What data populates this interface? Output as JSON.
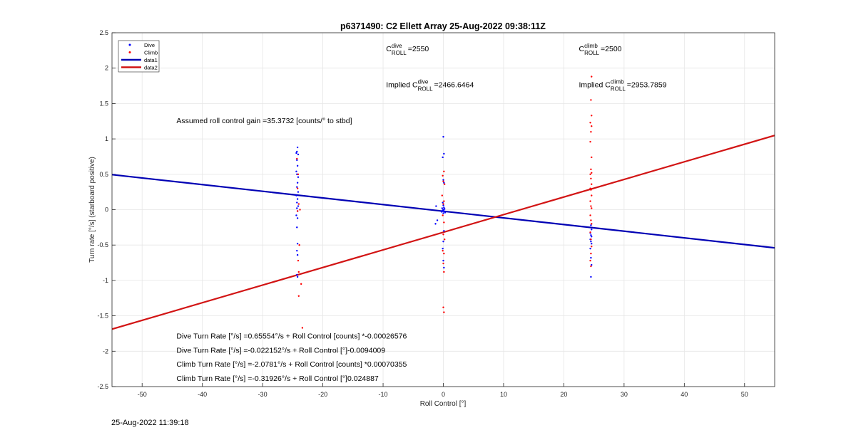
{
  "chart_data": {
    "type": "scatter",
    "title": "p6371490: C2 Ellett Array 25-Aug-2022 09:38:11Z",
    "xlabel": "Roll Control [°]",
    "ylabel": "Turn rate [°/s] (starboard positive)",
    "xlim": [
      -55,
      55
    ],
    "ylim": [
      -2.5,
      2.5
    ],
    "xticks": [
      -50,
      -40,
      -30,
      -20,
      -10,
      0,
      10,
      20,
      30,
      40,
      50
    ],
    "yticks": [
      -2.5,
      -2,
      -1.5,
      -1,
      -0.5,
      0,
      0.5,
      1,
      1.5,
      2,
      2.5
    ],
    "grid": true,
    "legend_position": "top-left",
    "series": [
      {
        "name": "Dive",
        "kind": "points",
        "color": "#0000ff",
        "points": [
          [
            -24.2,
            0.88
          ],
          [
            -24.3,
            0.82
          ],
          [
            -24.4,
            0.8
          ],
          [
            -24.1,
            0.78
          ],
          [
            -24.3,
            0.7
          ],
          [
            -24.2,
            0.62
          ],
          [
            -24.4,
            0.54
          ],
          [
            -24.3,
            0.5
          ],
          [
            -24.1,
            0.46
          ],
          [
            -24.2,
            0.38
          ],
          [
            -24.3,
            0.32
          ],
          [
            -24.1,
            0.25
          ],
          [
            -24.4,
            0.2
          ],
          [
            -24.2,
            0.15
          ],
          [
            -24.3,
            0.1
          ],
          [
            -24.1,
            0.05
          ],
          [
            -24.3,
            0.02
          ],
          [
            -24.2,
            -0.02
          ],
          [
            -24.4,
            -0.08
          ],
          [
            -24.2,
            -0.12
          ],
          [
            -24.3,
            -0.25
          ],
          [
            -24.2,
            -0.48
          ],
          [
            -24.3,
            -0.58
          ],
          [
            -24.2,
            -0.64
          ],
          [
            -24.3,
            -0.92
          ],
          [
            -24.2,
            -0.95
          ],
          [
            0.0,
            1.03
          ],
          [
            0.1,
            0.79
          ],
          [
            -0.1,
            0.74
          ],
          [
            0.0,
            0.42
          ],
          [
            0.1,
            0.38
          ],
          [
            -0.1,
            0.1
          ],
          [
            0.0,
            0.06
          ],
          [
            0.1,
            0.03
          ],
          [
            -0.2,
            0.02
          ],
          [
            0.2,
            0.01
          ],
          [
            0.0,
            0.0
          ],
          [
            -0.1,
            -0.01
          ],
          [
            0.1,
            -0.02
          ],
          [
            -0.3,
            -0.03
          ],
          [
            0.3,
            -0.04
          ],
          [
            0.0,
            -0.05
          ],
          [
            -1.2,
            0.05
          ],
          [
            -1.0,
            -0.15
          ],
          [
            -1.3,
            -0.2
          ],
          [
            0.1,
            -0.3
          ],
          [
            0.0,
            -0.45
          ],
          [
            -0.1,
            -0.55
          ],
          [
            0.0,
            -0.72
          ],
          [
            0.1,
            -0.82
          ],
          [
            24.5,
            -0.22
          ],
          [
            24.6,
            -0.28
          ],
          [
            24.4,
            -0.33
          ],
          [
            24.5,
            -0.36
          ],
          [
            24.6,
            -0.38
          ],
          [
            24.4,
            -0.42
          ],
          [
            24.5,
            -0.45
          ],
          [
            24.6,
            -0.48
          ],
          [
            24.4,
            -0.55
          ],
          [
            24.5,
            -0.68
          ],
          [
            24.6,
            -0.78
          ],
          [
            24.5,
            -0.95
          ]
        ]
      },
      {
        "name": "Climb",
        "kind": "points",
        "color": "#ff0000",
        "points": [
          [
            -24.3,
            0.72
          ],
          [
            -24.1,
            0.5
          ],
          [
            -24.2,
            0.3
          ],
          [
            -24.0,
            0.08
          ],
          [
            -23.8,
            0.0
          ],
          [
            -24.2,
            -0.02
          ],
          [
            -23.9,
            -0.5
          ],
          [
            -24.1,
            -0.72
          ],
          [
            -24.0,
            -0.88
          ],
          [
            -23.6,
            -1.05
          ],
          [
            -24.0,
            -1.22
          ],
          [
            -23.4,
            -1.67
          ],
          [
            0.1,
            0.54
          ],
          [
            -0.1,
            0.48
          ],
          [
            0.0,
            0.4
          ],
          [
            0.2,
            0.36
          ],
          [
            -0.2,
            0.2
          ],
          [
            0.1,
            0.12
          ],
          [
            0.0,
            0.08
          ],
          [
            -0.1,
            -0.08
          ],
          [
            0.1,
            -0.18
          ],
          [
            0.0,
            -0.35
          ],
          [
            0.2,
            -0.42
          ],
          [
            -0.1,
            -0.58
          ],
          [
            0.1,
            -0.62
          ],
          [
            0.0,
            -0.76
          ],
          [
            0.1,
            -0.88
          ],
          [
            0.0,
            -1.38
          ],
          [
            0.1,
            -1.45
          ],
          [
            24.6,
            1.88
          ],
          [
            24.5,
            1.55
          ],
          [
            24.6,
            1.33
          ],
          [
            24.4,
            1.23
          ],
          [
            24.6,
            1.18
          ],
          [
            24.5,
            1.1
          ],
          [
            24.4,
            0.96
          ],
          [
            24.6,
            0.74
          ],
          [
            24.5,
            0.57
          ],
          [
            24.6,
            0.52
          ],
          [
            24.4,
            0.5
          ],
          [
            24.5,
            0.44
          ],
          [
            24.6,
            0.36
          ],
          [
            24.4,
            0.3
          ],
          [
            24.5,
            0.28
          ],
          [
            24.6,
            0.2
          ],
          [
            24.4,
            0.12
          ],
          [
            24.5,
            0.05
          ],
          [
            24.6,
            0.02
          ],
          [
            24.4,
            -0.08
          ],
          [
            24.5,
            -0.15
          ],
          [
            24.6,
            -0.2
          ],
          [
            24.4,
            -0.32
          ],
          [
            24.5,
            -0.42
          ],
          [
            24.6,
            -0.52
          ],
          [
            24.5,
            -0.62
          ],
          [
            24.4,
            -0.72
          ],
          [
            24.5,
            -0.8
          ]
        ]
      },
      {
        "name": "data1",
        "kind": "line",
        "color": "#0000b4",
        "intercept": -0.022152,
        "slope": -0.0094009
      },
      {
        "name": "data2",
        "kind": "line",
        "color": "#d21414",
        "intercept": -0.31926,
        "slope": 0.024887
      }
    ],
    "annotations": [
      {
        "id": "c_roll_dive",
        "base": "C",
        "sup": "dive",
        "sub": "ROLL",
        "value": "=2550",
        "x": -9.5,
        "y": 2.24
      },
      {
        "id": "c_roll_climb",
        "base": "C",
        "sup": "climb",
        "sub": "ROLL",
        "value": "=2500",
        "x": 22.5,
        "y": 2.24
      },
      {
        "id": "implied_dive",
        "prefix": "Implied ",
        "base": "C",
        "sup": "dive",
        "sub": "ROLL",
        "value": "=2466.6464",
        "x": -9.5,
        "y": 1.73
      },
      {
        "id": "implied_climb",
        "prefix": "Implied ",
        "base": "C",
        "sup": "climb",
        "sub": "ROLL",
        "value": "=2953.7859",
        "x": 22.5,
        "y": 1.73
      },
      {
        "id": "roll_gain",
        "text": "Assumed roll control gain =35.3732 [counts/° to stbd]",
        "x": -44.3,
        "y": 1.22
      },
      {
        "id": "dive_eq_counts",
        "text": "Dive Turn Rate [°/s] =0.65554°/s + Roll Control [counts] *-0.00026576",
        "x": -44.3,
        "y": -1.82
      },
      {
        "id": "dive_eq_deg",
        "text": "Dive Turn Rate [°/s] =-0.022152°/s + Roll Control [°]-0.0094009",
        "x": -44.3,
        "y": -2.02
      },
      {
        "id": "climb_eq_counts",
        "text": "Climb Turn Rate [°/s] =-2.0781°/s + Roll Control [counts] *0.00070355",
        "x": -44.3,
        "y": -2.22
      },
      {
        "id": "climb_eq_deg",
        "text": "Climb Turn Rate [°/s] =-0.31926°/s + Roll Control [°]0.024887",
        "x": -44.3,
        "y": -2.42
      }
    ]
  },
  "footer": {
    "timestamp": "25-Aug-2022 11:39:18"
  }
}
